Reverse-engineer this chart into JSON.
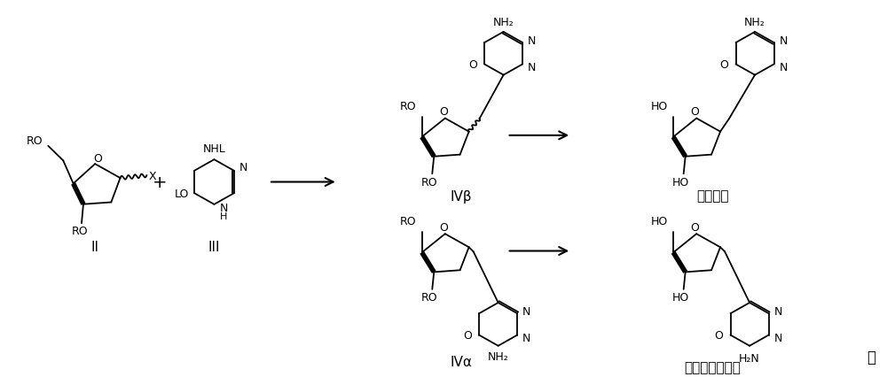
{
  "background_color": "#ffffff",
  "fig_width": 10.0,
  "fig_height": 4.27,
  "dpi": 100,
  "labels": {
    "II": "II",
    "III": "III",
    "IVbeta": "IVβ",
    "IValpha": "IVα",
    "decitabine": "地西他滨",
    "isomer": "地西他滨异构体",
    "period": "。",
    "NH2": "NH₂",
    "H2N": "H₂N",
    "plus": "+",
    "NHL": "NHL",
    "LO": "LO",
    "RO": "RO",
    "HO": "HO",
    "X": "X",
    "O": "O",
    "N": "N",
    "H": "H"
  },
  "lw": 1.3,
  "lw_bold": 4.0
}
